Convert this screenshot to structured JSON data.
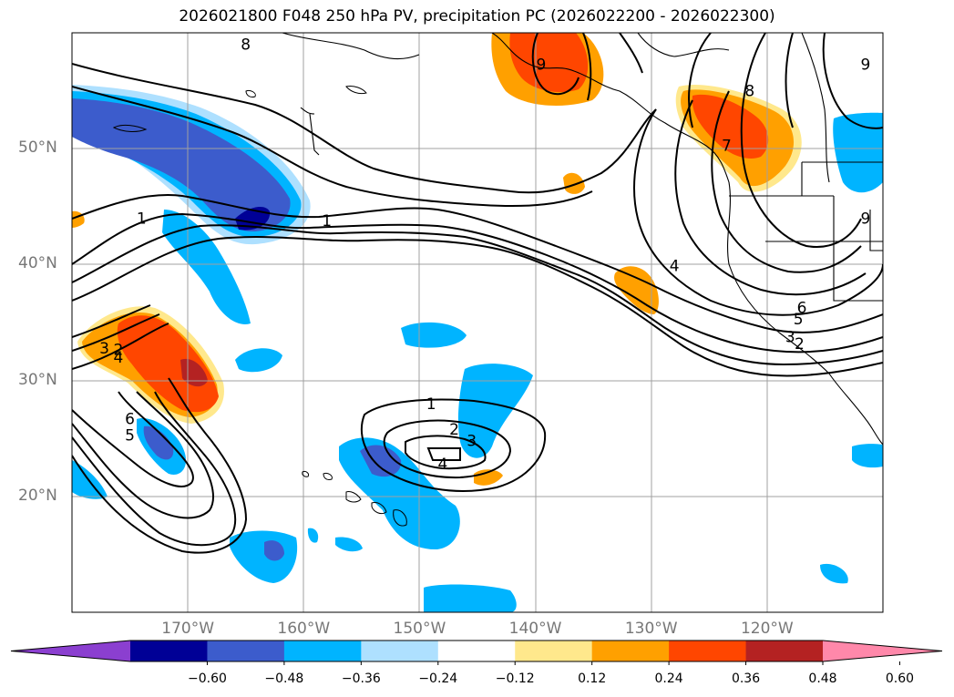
{
  "title": "2026021800 F048 250 hPa PV, precipitation PC (2026022200 - 2026022300)",
  "axes": {
    "lat_labels": [
      {
        "label": "50°N",
        "lat": 50
      },
      {
        "label": "40°N",
        "lat": 40
      },
      {
        "label": "30°N",
        "lat": 30
      },
      {
        "label": "20°N",
        "lat": 20
      }
    ],
    "lon_labels": [
      {
        "label": "170°W",
        "lon": -170
      },
      {
        "label": "160°W",
        "lon": -160
      },
      {
        "label": "150°W",
        "lon": -150
      },
      {
        "label": "140°W",
        "lon": -140
      },
      {
        "label": "130°W",
        "lon": -130
      },
      {
        "label": "120°W",
        "lon": -120
      }
    ],
    "lon_range": [
      -180,
      -110
    ],
    "lat_range": [
      10,
      60
    ]
  },
  "colorbar": {
    "colors": [
      "#8b3fd0",
      "#000096",
      "#3c5ccc",
      "#00b4ff",
      "#aee0ff",
      "#ffffff",
      "#ffe88c",
      "#ffa000",
      "#ff4600",
      "#b42222",
      "#ff88aa"
    ],
    "tick_labels": [
      "−0.60",
      "−0.48",
      "−0.36",
      "−0.24",
      "−0.12",
      "0.12",
      "0.24",
      "0.36",
      "0.48",
      "0.60"
    ]
  },
  "contour_labels": [
    {
      "text": "1",
      "lon": -174,
      "lat": 44
    },
    {
      "text": "1",
      "lon": -158,
      "lat": 43.8
    },
    {
      "text": "1",
      "lon": -149,
      "lat": 28
    },
    {
      "text": "2",
      "lon": -147,
      "lat": 25.8
    },
    {
      "text": "3",
      "lon": -145.5,
      "lat": 24.8
    },
    {
      "text": "4",
      "lon": -148,
      "lat": 22.8
    },
    {
      "text": "2",
      "lon": -176,
      "lat": 32.7
    },
    {
      "text": "3",
      "lon": -177.2,
      "lat": 32.8
    },
    {
      "text": "4",
      "lon": -176,
      "lat": 32
    },
    {
      "text": "6",
      "lon": -175,
      "lat": 26.7
    },
    {
      "text": "5",
      "lon": -175,
      "lat": 25.3
    },
    {
      "text": "4",
      "lon": -128,
      "lat": 39.9
    },
    {
      "text": "5",
      "lon": -117.3,
      "lat": 35.3
    },
    {
      "text": "6",
      "lon": -117,
      "lat": 36.3
    },
    {
      "text": "3",
      "lon": -118,
      "lat": 33.8
    },
    {
      "text": "2",
      "lon": -117.2,
      "lat": 33.2
    },
    {
      "text": "7",
      "lon": -123.5,
      "lat": 50.3
    },
    {
      "text": "8",
      "lon": -121.5,
      "lat": 55
    },
    {
      "text": "9",
      "lon": -139.5,
      "lat": 57.3
    },
    {
      "text": "9",
      "lon": -111.5,
      "lat": 57.3
    },
    {
      "text": "8",
      "lon": -165,
      "lat": 59
    },
    {
      "text": "9",
      "lon": -111.5,
      "lat": 44
    }
  ]
}
